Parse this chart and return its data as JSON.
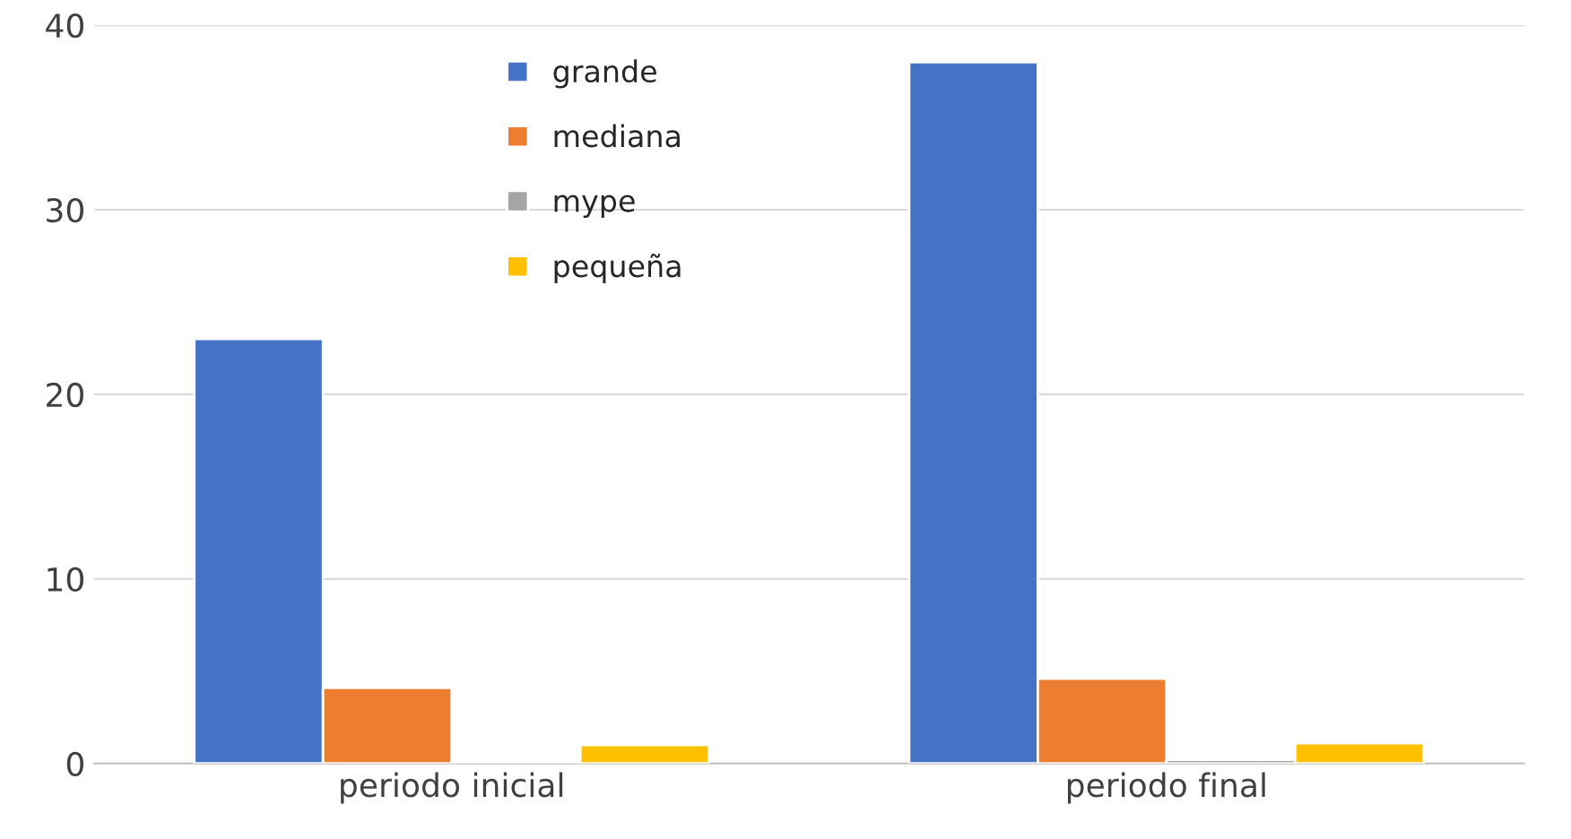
{
  "chart_data": {
    "type": "bar",
    "categories": [
      "periodo inicial",
      "periodo final"
    ],
    "series": [
      {
        "name": "grande",
        "color": "#4472c4",
        "values": [
          23,
          38
        ]
      },
      {
        "name": "mediana",
        "color": "#ed7d31",
        "values": [
          4.1,
          4.6
        ]
      },
      {
        "name": "mype",
        "color": "#a5a5a5",
        "values": [
          0.1,
          0.2
        ]
      },
      {
        "name": "pequeña",
        "color": "#ffc000",
        "values": [
          1,
          1.1
        ]
      }
    ],
    "ylim": [
      0,
      40
    ],
    "yticks": [
      0,
      10,
      20,
      30,
      40
    ],
    "grid": "y",
    "legend": "top left"
  }
}
